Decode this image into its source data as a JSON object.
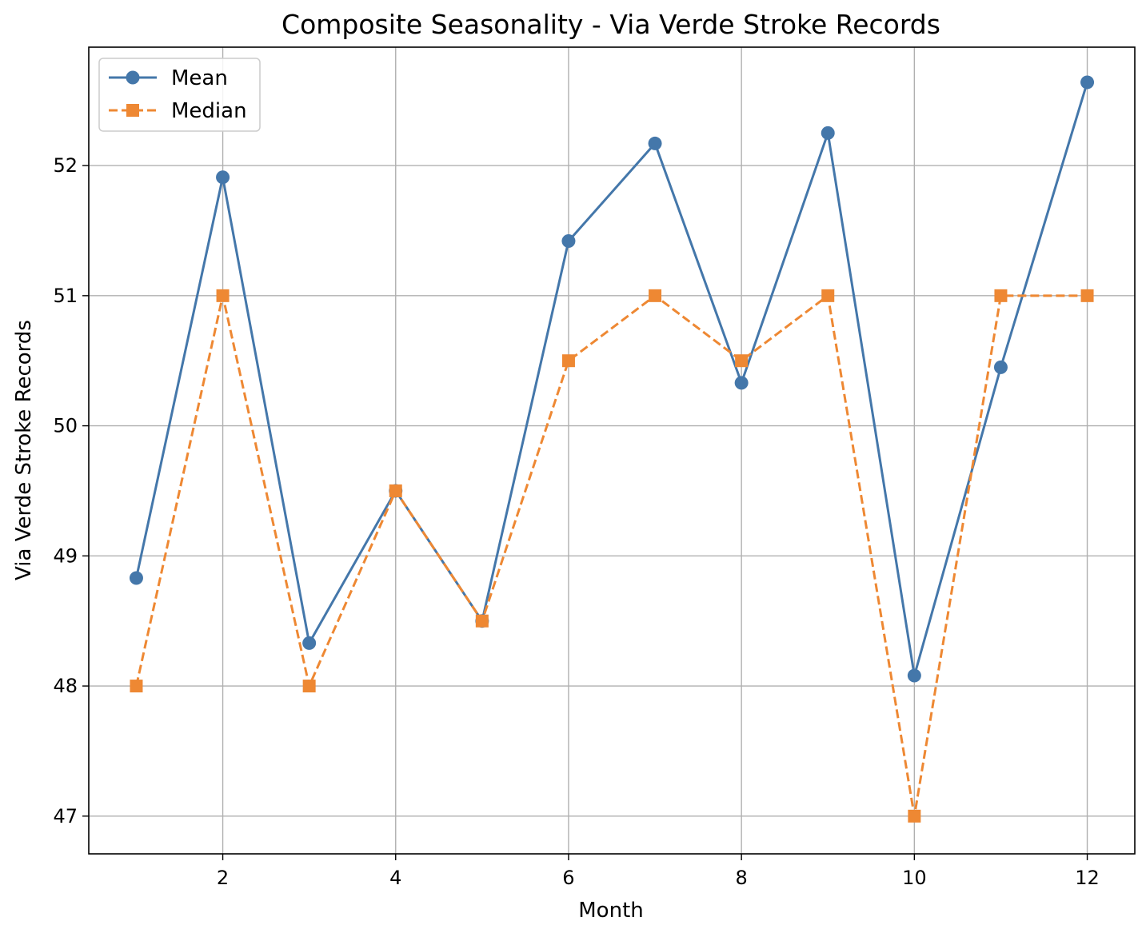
{
  "chart_data": {
    "type": "line",
    "title": "Composite Seasonality - Via Verde Stroke Records",
    "xlabel": "Month",
    "ylabel": "Via Verde Stroke Records",
    "x": [
      1,
      2,
      3,
      4,
      5,
      6,
      7,
      8,
      9,
      10,
      11,
      12
    ],
    "xticks": [
      2,
      4,
      6,
      8,
      10,
      12
    ],
    "yticks": [
      47,
      48,
      49,
      50,
      51,
      52
    ],
    "xlim": [
      0.45,
      12.55
    ],
    "ylim": [
      46.71,
      52.91
    ],
    "grid": true,
    "legend_position": "upper left",
    "series": [
      {
        "name": "Mean",
        "color": "#4477aa",
        "marker": "circle",
        "linestyle": "solid",
        "values": [
          48.83,
          51.91,
          48.33,
          49.5,
          48.5,
          51.42,
          52.17,
          50.33,
          52.25,
          48.08,
          50.45,
          52.64
        ]
      },
      {
        "name": "Median",
        "color": "#ee8833",
        "marker": "square",
        "linestyle": "dashed",
        "values": [
          48.0,
          51.0,
          48.0,
          49.5,
          48.5,
          50.5,
          51.0,
          50.5,
          51.0,
          47.0,
          51.0,
          51.0
        ]
      }
    ]
  }
}
